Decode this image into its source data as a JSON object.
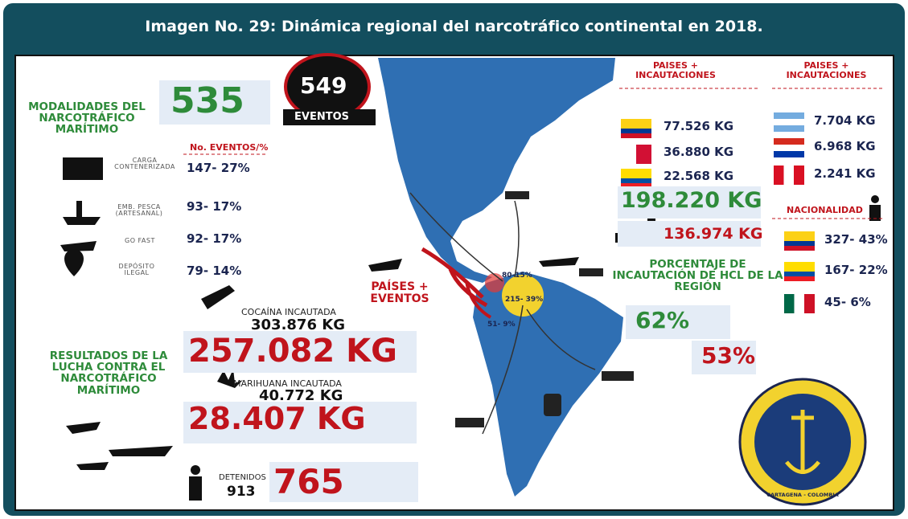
{
  "header": {
    "title": "Imagen No. 29: Dinámica regional del narcotráfico continental en 2018."
  },
  "events": {
    "total": "549",
    "total_label": "EVENTOS",
    "value": "535"
  },
  "modalities": {
    "title": "MODALIDADES DEL NARCOTRÁFICO MARÍTIMO",
    "column": "No. EVENTOS/%",
    "items": [
      {
        "label": "CARGA CONTENERIZADA",
        "value": "147- 27%"
      },
      {
        "label": "EMB. PESCA (ARTESANAL)",
        "value": "93- 17%"
      },
      {
        "label": "GO FAST",
        "value": "92- 17%"
      },
      {
        "label": "DEPÓSITO ILEGAL",
        "value": "79- 14%"
      }
    ]
  },
  "cocaine": {
    "label": "COCAÍNA INCAUTADA",
    "previous": "303.876 KG",
    "current": "257.082 KG"
  },
  "marijuana": {
    "label": "MARIHUANA INCAUTADA",
    "previous": "40.772 KG",
    "current": "28.407 KG"
  },
  "results": {
    "title": "RESULTADOS DE LA LUCHA CONTRA EL NARCOTRÁFICO MARÍTIMO"
  },
  "detainees": {
    "label": "DETENIDOS",
    "previous": "913",
    "current": "765"
  },
  "map": {
    "legend": "PAÍSES + EVENTOS",
    "labels": [
      "80-15%",
      "215- 39%",
      "51- 9%"
    ]
  },
  "cocaine_countries": {
    "title": "PAISES + INCAUTACIONES",
    "items": [
      "77.526 KG",
      "36.880 KG",
      "22.568 KG"
    ],
    "total": "198.220 KG",
    "compare": "136.974 KG"
  },
  "marijuana_countries": {
    "title": "PAISES + INCAUTACIONES",
    "items": [
      "7.704 KG",
      "6.968 KG",
      "2.241 KG"
    ]
  },
  "nationality": {
    "title": "NACIONALIDAD",
    "items": [
      "327- 43%",
      "167- 22%",
      "45- 6%"
    ]
  },
  "hcl": {
    "title": "PORCENTAJE DE INCAUTACIÓN DE HCL DE LA REGIÓN",
    "current": "62%",
    "previous": "53%"
  },
  "seal": {
    "text": "CARTAGENA - COLOMBIA"
  }
}
